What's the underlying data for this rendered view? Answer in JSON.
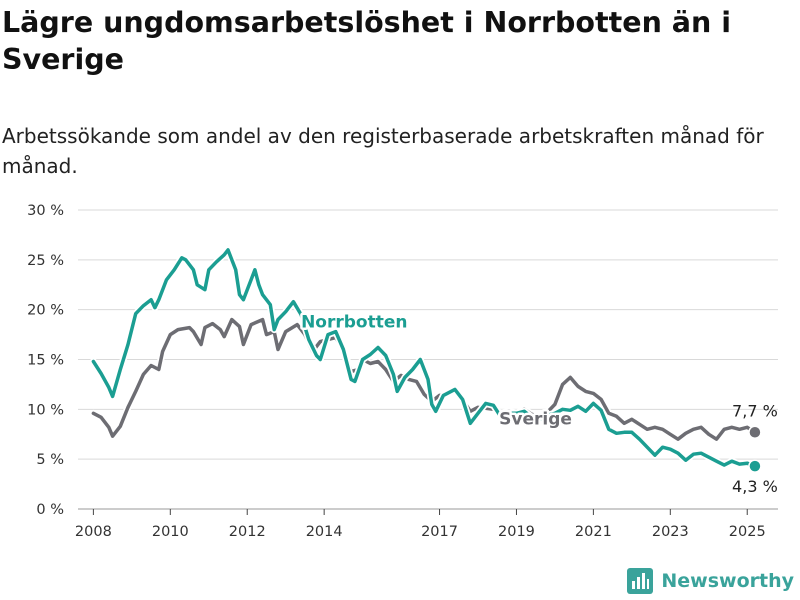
{
  "title": "Lägre ungdomsarbetslöshet i Norrbotten än i Sverige",
  "subtitle": "Arbetssökande som andel av den registerbaserade arbetskraften månad för månad.",
  "brand": {
    "name": "Newsworthy",
    "icon": "bar-chart-logo-icon",
    "color": "#3aa39b"
  },
  "chart_data": {
    "type": "line",
    "title": "Lägre ungdomsarbetslöshet i Norrbotten än i Sverige",
    "subtitle": "Arbetssökande som andel av den registerbaserade arbetskraften månad för månad.",
    "xlabel": "",
    "ylabel": "",
    "xlim": [
      2007.6,
      2025.8
    ],
    "ylim": [
      0,
      30
    ],
    "grid": true,
    "x_ticks": [
      {
        "value": 2008,
        "label": "2008"
      },
      {
        "value": 2010,
        "label": "2010"
      },
      {
        "value": 2012,
        "label": "2012"
      },
      {
        "value": 2014,
        "label": "2014"
      },
      {
        "value": 2017,
        "label": "2017"
      },
      {
        "value": 2019,
        "label": "2019"
      },
      {
        "value": 2021,
        "label": "2021"
      },
      {
        "value": 2023,
        "label": "2023"
      },
      {
        "value": 2025,
        "label": "2025"
      }
    ],
    "y_ticks": [
      {
        "value": 0,
        "label": "0 %"
      },
      {
        "value": 5,
        "label": "5 %"
      },
      {
        "value": 10,
        "label": "10 %"
      },
      {
        "value": 15,
        "label": "15 %"
      },
      {
        "value": 20,
        "label": "20 %"
      },
      {
        "value": 25,
        "label": "25 %"
      },
      {
        "value": 30,
        "label": "30 %"
      }
    ],
    "series": [
      {
        "name": "Sverige",
        "color": "#6d6d73",
        "label_pos": [
          2018.55,
          8.5
        ],
        "end_label": "7,7 %",
        "end_label_pos": "above",
        "points": [
          [
            2008.0,
            9.6
          ],
          [
            2008.2,
            9.2
          ],
          [
            2008.4,
            8.2
          ],
          [
            2008.5,
            7.3
          ],
          [
            2008.7,
            8.3
          ],
          [
            2008.9,
            10.2
          ],
          [
            2009.1,
            11.8
          ],
          [
            2009.3,
            13.5
          ],
          [
            2009.5,
            14.4
          ],
          [
            2009.7,
            14.0
          ],
          [
            2009.8,
            15.8
          ],
          [
            2010.0,
            17.5
          ],
          [
            2010.2,
            18.0
          ],
          [
            2010.5,
            18.2
          ],
          [
            2010.6,
            17.8
          ],
          [
            2010.8,
            16.5
          ],
          [
            2010.9,
            18.2
          ],
          [
            2011.1,
            18.6
          ],
          [
            2011.3,
            18.0
          ],
          [
            2011.4,
            17.3
          ],
          [
            2011.6,
            19.0
          ],
          [
            2011.8,
            18.3
          ],
          [
            2011.9,
            16.5
          ],
          [
            2012.1,
            18.5
          ],
          [
            2012.4,
            19.0
          ],
          [
            2012.5,
            17.5
          ],
          [
            2012.7,
            17.8
          ],
          [
            2012.8,
            16.0
          ],
          [
            2013.0,
            17.8
          ],
          [
            2013.3,
            18.5
          ],
          [
            2013.5,
            17.5
          ],
          [
            2013.7,
            15.8
          ],
          [
            2013.9,
            16.8
          ],
          [
            2014.1,
            17.0
          ],
          [
            2014.3,
            17.2
          ],
          [
            2014.5,
            16.0
          ],
          [
            2014.7,
            13.8
          ],
          [
            2014.9,
            14.0
          ],
          [
            2015.0,
            15.0
          ],
          [
            2015.2,
            14.6
          ],
          [
            2015.4,
            14.8
          ],
          [
            2015.6,
            14.0
          ],
          [
            2015.8,
            12.8
          ],
          [
            2016.0,
            13.4
          ],
          [
            2016.2,
            13.0
          ],
          [
            2016.4,
            12.8
          ],
          [
            2016.6,
            11.5
          ],
          [
            2016.8,
            10.8
          ],
          [
            2017.0,
            11.4
          ],
          [
            2017.2,
            11.5
          ],
          [
            2017.4,
            11.8
          ],
          [
            2017.6,
            11.0
          ],
          [
            2017.8,
            9.8
          ],
          [
            2018.0,
            10.2
          ],
          [
            2018.2,
            10.1
          ],
          [
            2018.4,
            10.0
          ],
          [
            2018.6,
            9.6
          ],
          [
            2018.8,
            9.8
          ],
          [
            2019.0,
            9.6
          ],
          [
            2019.2,
            10.0
          ],
          [
            2019.4,
            9.5
          ],
          [
            2019.6,
            9.3
          ],
          [
            2019.8,
            9.7
          ],
          [
            2020.0,
            10.5
          ],
          [
            2020.2,
            12.5
          ],
          [
            2020.4,
            13.2
          ],
          [
            2020.6,
            12.3
          ],
          [
            2020.8,
            11.8
          ],
          [
            2021.0,
            11.6
          ],
          [
            2021.2,
            11.0
          ],
          [
            2021.4,
            9.6
          ],
          [
            2021.6,
            9.3
          ],
          [
            2021.8,
            8.6
          ],
          [
            2022.0,
            9.0
          ],
          [
            2022.2,
            8.5
          ],
          [
            2022.4,
            8.0
          ],
          [
            2022.6,
            8.2
          ],
          [
            2022.8,
            8.0
          ],
          [
            2023.0,
            7.5
          ],
          [
            2023.2,
            7.0
          ],
          [
            2023.4,
            7.6
          ],
          [
            2023.6,
            8.0
          ],
          [
            2023.8,
            8.2
          ],
          [
            2024.0,
            7.5
          ],
          [
            2024.2,
            7.0
          ],
          [
            2024.4,
            8.0
          ],
          [
            2024.6,
            8.2
          ],
          [
            2024.8,
            8.0
          ],
          [
            2025.0,
            8.2
          ],
          [
            2025.2,
            7.7
          ]
        ]
      },
      {
        "name": "Norrbotten",
        "color": "#1b9e92",
        "label_pos": [
          2013.4,
          18.2
        ],
        "end_label": "4,3 %",
        "end_label_pos": "below",
        "points": [
          [
            2008.0,
            14.8
          ],
          [
            2008.2,
            13.6
          ],
          [
            2008.4,
            12.2
          ],
          [
            2008.5,
            11.3
          ],
          [
            2008.7,
            14.0
          ],
          [
            2008.9,
            16.5
          ],
          [
            2009.1,
            19.6
          ],
          [
            2009.3,
            20.4
          ],
          [
            2009.5,
            21.0
          ],
          [
            2009.6,
            20.2
          ],
          [
            2009.7,
            21.0
          ],
          [
            2009.9,
            23.0
          ],
          [
            2010.1,
            24.0
          ],
          [
            2010.3,
            25.2
          ],
          [
            2010.4,
            25.0
          ],
          [
            2010.6,
            24.0
          ],
          [
            2010.7,
            22.5
          ],
          [
            2010.9,
            22.0
          ],
          [
            2011.0,
            24.0
          ],
          [
            2011.2,
            24.8
          ],
          [
            2011.4,
            25.5
          ],
          [
            2011.5,
            26.0
          ],
          [
            2011.7,
            24.0
          ],
          [
            2011.8,
            21.5
          ],
          [
            2011.9,
            21.0
          ],
          [
            2012.1,
            23.0
          ],
          [
            2012.2,
            24.0
          ],
          [
            2012.3,
            22.5
          ],
          [
            2012.4,
            21.5
          ],
          [
            2012.6,
            20.5
          ],
          [
            2012.7,
            18.0
          ],
          [
            2012.8,
            19.0
          ],
          [
            2013.0,
            19.8
          ],
          [
            2013.2,
            20.8
          ],
          [
            2013.4,
            19.5
          ],
          [
            2013.6,
            17.0
          ],
          [
            2013.8,
            15.4
          ],
          [
            2013.9,
            15.0
          ],
          [
            2014.1,
            17.5
          ],
          [
            2014.3,
            17.8
          ],
          [
            2014.5,
            16.0
          ],
          [
            2014.7,
            13.0
          ],
          [
            2014.8,
            12.8
          ],
          [
            2015.0,
            15.0
          ],
          [
            2015.2,
            15.5
          ],
          [
            2015.4,
            16.2
          ],
          [
            2015.6,
            15.4
          ],
          [
            2015.8,
            13.5
          ],
          [
            2015.9,
            11.8
          ],
          [
            2016.1,
            13.2
          ],
          [
            2016.3,
            14.0
          ],
          [
            2016.5,
            15.0
          ],
          [
            2016.7,
            13.0
          ],
          [
            2016.8,
            10.5
          ],
          [
            2016.9,
            9.8
          ],
          [
            2017.1,
            11.4
          ],
          [
            2017.4,
            12.0
          ],
          [
            2017.6,
            11.0
          ],
          [
            2017.8,
            8.6
          ],
          [
            2018.0,
            9.6
          ],
          [
            2018.2,
            10.6
          ],
          [
            2018.4,
            10.4
          ],
          [
            2018.6,
            9.2
          ],
          [
            2018.8,
            9.6
          ],
          [
            2019.0,
            9.6
          ],
          [
            2019.2,
            9.8
          ],
          [
            2019.4,
            9.2
          ],
          [
            2019.6,
            9.0
          ],
          [
            2019.8,
            9.4
          ],
          [
            2020.0,
            9.6
          ],
          [
            2020.2,
            10.0
          ],
          [
            2020.4,
            9.9
          ],
          [
            2020.6,
            10.3
          ],
          [
            2020.8,
            9.8
          ],
          [
            2021.0,
            10.6
          ],
          [
            2021.2,
            9.9
          ],
          [
            2021.4,
            8.0
          ],
          [
            2021.6,
            7.6
          ],
          [
            2021.8,
            7.7
          ],
          [
            2022.0,
            7.7
          ],
          [
            2022.2,
            7.0
          ],
          [
            2022.4,
            6.2
          ],
          [
            2022.6,
            5.4
          ],
          [
            2022.8,
            6.2
          ],
          [
            2023.0,
            6.0
          ],
          [
            2023.2,
            5.6
          ],
          [
            2023.4,
            4.9
          ],
          [
            2023.6,
            5.5
          ],
          [
            2023.8,
            5.6
          ],
          [
            2024.0,
            5.2
          ],
          [
            2024.2,
            4.8
          ],
          [
            2024.4,
            4.4
          ],
          [
            2024.6,
            4.8
          ],
          [
            2024.8,
            4.5
          ],
          [
            2025.0,
            4.6
          ],
          [
            2025.2,
            4.3
          ]
        ]
      }
    ]
  }
}
